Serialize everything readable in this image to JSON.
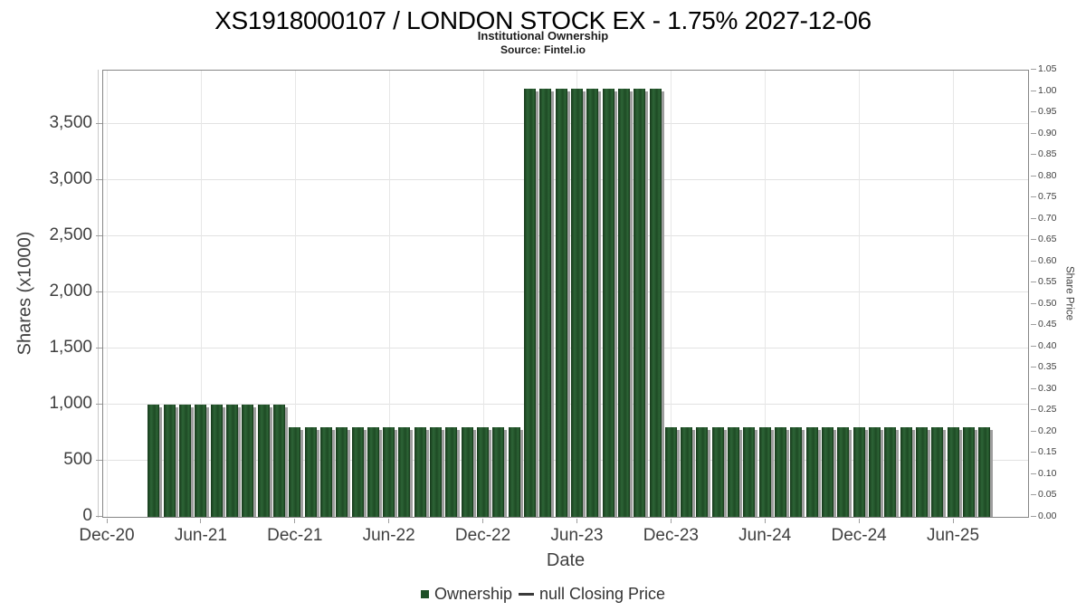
{
  "chart_data": {
    "type": "bar",
    "title": "XS1918000107 / LONDON STOCK EX - 1.75% 2027-12-06",
    "subtitle": "Institutional Ownership",
    "source": "Source: Fintel.io",
    "xlabel": "Date",
    "ylabel_left": "Shares (x1000)",
    "ylabel_right": "Share Price",
    "x_ticks": [
      "Dec-20",
      "Jun-21",
      "Dec-21",
      "Jun-22",
      "Dec-22",
      "Jun-23",
      "Dec-23",
      "Jun-24",
      "Dec-24",
      "Jun-25"
    ],
    "y_ticks_left": [
      {
        "value": 0,
        "label": "0"
      },
      {
        "value": 500,
        "label": "500"
      },
      {
        "value": 1000,
        "label": "1,000"
      },
      {
        "value": 1500,
        "label": "1,500"
      },
      {
        "value": 2000,
        "label": "2,000"
      },
      {
        "value": 2500,
        "label": "2,500"
      },
      {
        "value": 3000,
        "label": "3,000"
      },
      {
        "value": 3500,
        "label": "3,500"
      }
    ],
    "y_ticks_right": [
      "0.00",
      "0.05",
      "0.10",
      "0.15",
      "0.20",
      "0.25",
      "0.30",
      "0.35",
      "0.40",
      "0.45",
      "0.50",
      "0.55",
      "0.60",
      "0.65",
      "0.70",
      "0.75",
      "0.80",
      "0.85",
      "0.90",
      "0.95",
      "1.00",
      "1.05"
    ],
    "ylim_left": [
      0,
      4000
    ],
    "ylim_right": [
      0,
      1.05
    ],
    "grid": true,
    "legend_position": "bottom-center",
    "colors": {
      "bar": "#24522b",
      "bar_shadow": "#9e9e9e",
      "legend_swatch": "#1d4f26",
      "grid": "#e2e2e2",
      "plot_border": "#868686"
    },
    "series": [
      {
        "name": "Ownership",
        "type": "bar",
        "color": "#1d4f26",
        "points": [
          {
            "month": "Mar-21",
            "value": 990
          },
          {
            "month": "Apr-21",
            "value": 990
          },
          {
            "month": "May-21",
            "value": 990
          },
          {
            "month": "Jun-21",
            "value": 990
          },
          {
            "month": "Jul-21",
            "value": 990
          },
          {
            "month": "Aug-21",
            "value": 990
          },
          {
            "month": "Sep-21",
            "value": 990
          },
          {
            "month": "Oct-21",
            "value": 990
          },
          {
            "month": "Nov-21",
            "value": 990
          },
          {
            "month": "Dec-21",
            "value": 790
          },
          {
            "month": "Jan-22",
            "value": 790
          },
          {
            "month": "Feb-22",
            "value": 790
          },
          {
            "month": "Mar-22",
            "value": 790
          },
          {
            "month": "Apr-22",
            "value": 790
          },
          {
            "month": "May-22",
            "value": 790
          },
          {
            "month": "Jun-22",
            "value": 790
          },
          {
            "month": "Jul-22",
            "value": 790
          },
          {
            "month": "Aug-22",
            "value": 790
          },
          {
            "month": "Sep-22",
            "value": 790
          },
          {
            "month": "Oct-22",
            "value": 790
          },
          {
            "month": "Nov-22",
            "value": 790
          },
          {
            "month": "Dec-22",
            "value": 790
          },
          {
            "month": "Jan-23",
            "value": 790
          },
          {
            "month": "Feb-23",
            "value": 790
          },
          {
            "month": "Mar-23",
            "value": 3810
          },
          {
            "month": "Apr-23",
            "value": 3810
          },
          {
            "month": "May-23",
            "value": 3810
          },
          {
            "month": "Jun-23",
            "value": 3810
          },
          {
            "month": "Jul-23",
            "value": 3810
          },
          {
            "month": "Aug-23",
            "value": 3810
          },
          {
            "month": "Sep-23",
            "value": 3810
          },
          {
            "month": "Oct-23",
            "value": 3810
          },
          {
            "month": "Nov-23",
            "value": 3810
          },
          {
            "month": "Dec-23",
            "value": 790
          },
          {
            "month": "Jan-24",
            "value": 790
          },
          {
            "month": "Feb-24",
            "value": 790
          },
          {
            "month": "Mar-24",
            "value": 790
          },
          {
            "month": "Apr-24",
            "value": 790
          },
          {
            "month": "May-24",
            "value": 790
          },
          {
            "month": "Jun-24",
            "value": 790
          },
          {
            "month": "Jul-24",
            "value": 790
          },
          {
            "month": "Aug-24",
            "value": 790
          },
          {
            "month": "Sep-24",
            "value": 790
          },
          {
            "month": "Oct-24",
            "value": 790
          },
          {
            "month": "Nov-24",
            "value": 790
          },
          {
            "month": "Dec-24",
            "value": 790
          },
          {
            "month": "Jan-25",
            "value": 790
          },
          {
            "month": "Feb-25",
            "value": 790
          },
          {
            "month": "Mar-25",
            "value": 790
          },
          {
            "month": "Apr-25",
            "value": 790
          },
          {
            "month": "May-25",
            "value": 790
          },
          {
            "month": "Jun-25",
            "value": 790
          },
          {
            "month": "Jul-25",
            "value": 790
          },
          {
            "month": "Aug-25",
            "value": 790
          }
        ]
      },
      {
        "name": "null Closing Price",
        "type": "line",
        "color": "#3a3a3a",
        "points": []
      }
    ]
  }
}
